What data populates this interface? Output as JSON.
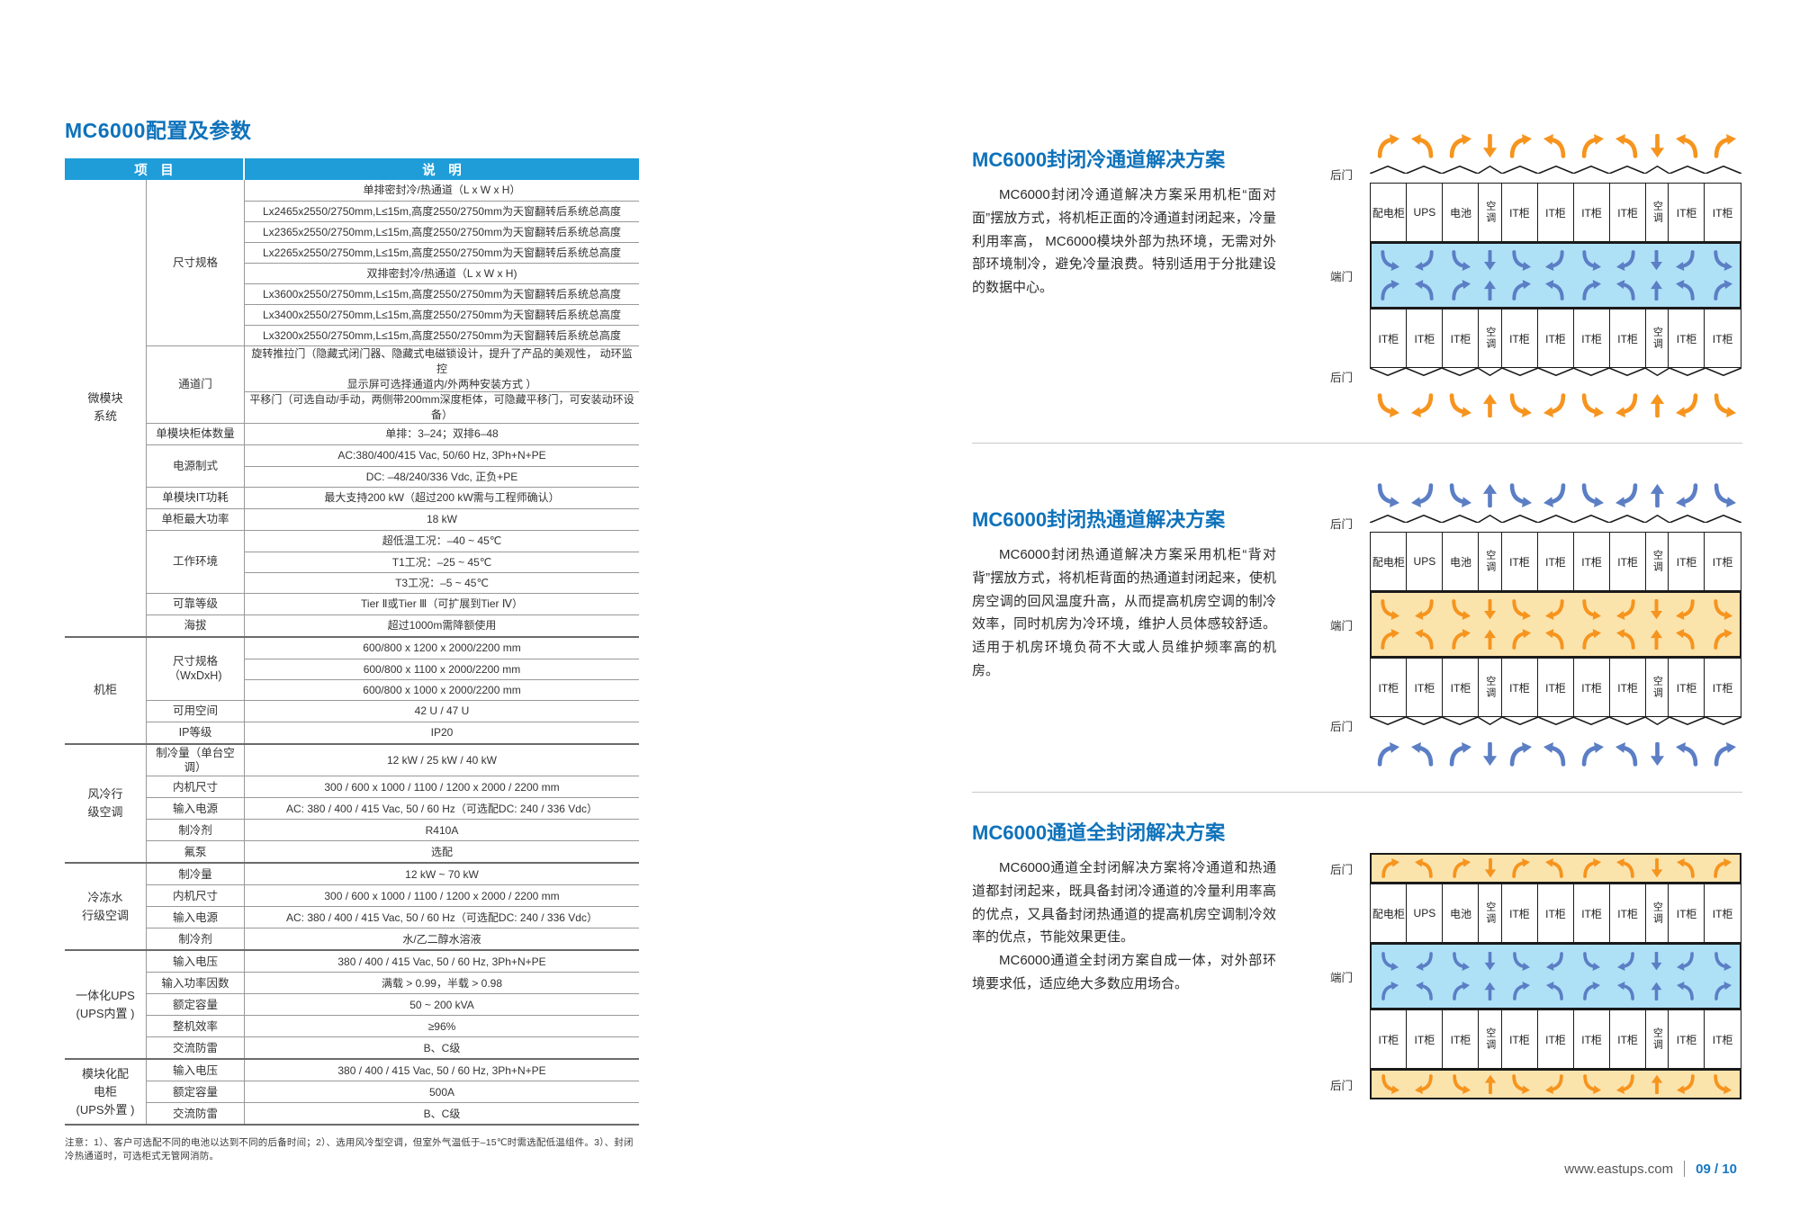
{
  "page": {
    "title": "MC6000配置及参数",
    "note": "注意：1）、客户可选配不同的电池以达到不同的后备时间；2）、选用风冷型空调，但室外气温低于–15℃时需选配低温组件。3）、封闭冷热通道时，可选柜式无管网消防。",
    "footer": {
      "url": "www.eastups.com",
      "page_no": "09 / 10"
    }
  },
  "colors": {
    "accent_blue": "#0e72ba",
    "table_header_blue": "#1e9dd9",
    "cold_aisle": "#aee0f6",
    "hot_aisle": "#fbe3ac",
    "arrow_hot": "#f6941d",
    "arrow_cold": "#5b7ec5"
  },
  "spec_table": {
    "header": {
      "col_item": "项　目",
      "col_desc": "说　明"
    },
    "groups": [
      {
        "name": "微模块\n系统",
        "items": [
          {
            "label": "尺寸规格",
            "rows": [
              "单排密封冷/热通道（L x W x H）",
              "Lx2465x2550/2750mm,L≤15m,高度2550/2750mm为天窗翻转后系统总高度",
              "Lx2365x2550/2750mm,L≤15m,高度2550/2750mm为天窗翻转后系统总高度",
              "Lx2265x2550/2750mm,L≤15m,高度2550/2750mm为天窗翻转后系统总高度",
              "双排密封冷/热通道（L x W x H)",
              "Lx3600x2550/2750mm,L≤15m,高度2550/2750mm为天窗翻转后系统总高度",
              "Lx3400x2550/2750mm,L≤15m,高度2550/2750mm为天窗翻转后系统总高度",
              "Lx3200x2550/2750mm,L≤15m,高度2550/2750mm为天窗翻转后系统总高度"
            ]
          },
          {
            "label": "通道门",
            "rows": [
              "旋转推拉门（隐藏式闭门器、隐藏式电磁锁设计，提升了产品的美观性， 动环监控\n显示屏可选择通道内/外两种安装方式 ）",
              "平移门（可选自动/手动，两侧带200mm深度柜体，可隐藏平移门，可安装动环设备）"
            ]
          },
          {
            "label": "单模块柜体数量",
            "rows": [
              "单排：3–24；双排6–48"
            ]
          },
          {
            "label": "电源制式",
            "rows": [
              "AC:380/400/415 Vac, 50/60 Hz, 3Ph+N+PE",
              "DC: –48/240/336 Vdc, 正负+PE"
            ]
          },
          {
            "label": "单模块IT功耗",
            "rows": [
              "最大支持200 kW（超过200 kW需与工程师确认）"
            ]
          },
          {
            "label": "单柜最大功率",
            "rows": [
              "18 kW"
            ]
          },
          {
            "label": "工作环境",
            "rows": [
              "超低温工况：–40 ~ 45℃",
              "T1工况：–25 ~ 45℃",
              "T3工况：–5 ~ 45℃"
            ]
          },
          {
            "label": "可靠等级",
            "rows": [
              "Tier Ⅱ或Tier Ⅲ（可扩展到Tier Ⅳ）"
            ]
          },
          {
            "label": "海拔",
            "rows": [
              "超过1000m需降额使用"
            ]
          }
        ]
      },
      {
        "name": "机柜",
        "items": [
          {
            "label": "尺寸规格\n（WxDxH)",
            "rows": [
              "600/800 x 1200 x 2000/2200 mm",
              "600/800 x 1100 x 2000/2200 mm",
              "600/800 x 1000 x 2000/2200 mm"
            ]
          },
          {
            "label": "可用空间",
            "rows": [
              "42 U / 47 U"
            ]
          },
          {
            "label": "IP等级",
            "rows": [
              "IP20"
            ]
          }
        ]
      },
      {
        "name": "风冷行\n级空调",
        "items": [
          {
            "label": "制冷量（单台空调）",
            "rows": [
              "12 kW / 25 kW / 40 kW"
            ]
          },
          {
            "label": "内机尺寸",
            "rows": [
              "300 / 600 x 1000 / 1100 / 1200 x 2000 / 2200 mm"
            ]
          },
          {
            "label": "输入电源",
            "rows": [
              "AC: 380 / 400 / 415 Vac, 50 / 60 Hz（可选配DC: 240 / 336 Vdc）"
            ]
          },
          {
            "label": "制冷剂",
            "rows": [
              "R410A"
            ]
          },
          {
            "label": "氟泵",
            "rows": [
              "选配"
            ]
          }
        ]
      },
      {
        "name": "冷冻水\n行级空调",
        "items": [
          {
            "label": "制冷量",
            "rows": [
              "12 kW ~ 70 kW"
            ]
          },
          {
            "label": "内机尺寸",
            "rows": [
              "300 / 600 x 1000 / 1100 / 1200 x 2000 / 2200 mm"
            ]
          },
          {
            "label": "输入电源",
            "rows": [
              "AC: 380 / 400 / 415 Vac, 50 / 60 Hz（可选配DC: 240 / 336 Vdc）"
            ]
          },
          {
            "label": "制冷剂",
            "rows": [
              "水/乙二醇水溶液"
            ]
          }
        ]
      },
      {
        "name": "一体化UPS\n(UPS内置 )",
        "items": [
          {
            "label": "输入电压",
            "rows": [
              "380 / 400 / 415 Vac, 50 / 60 Hz, 3Ph+N+PE"
            ]
          },
          {
            "label": "输入功率因数",
            "rows": [
              "满载 > 0.99，半载 > 0.98"
            ]
          },
          {
            "label": "额定容量",
            "rows": [
              "50 ~ 200 kVA"
            ]
          },
          {
            "label": "整机效率",
            "rows": [
              "≥96%"
            ]
          },
          {
            "label": "交流防雷",
            "rows": [
              "B、C级"
            ]
          }
        ]
      },
      {
        "name": "模块化配\n电柜\n(UPS外置 )",
        "items": [
          {
            "label": "输入电压",
            "rows": [
              "380 / 400 / 415 Vac, 50 / 60 Hz, 3Ph+N+PE"
            ]
          },
          {
            "label": "额定容量",
            "rows": [
              "500A"
            ]
          },
          {
            "label": "交流防雷",
            "rows": [
              "B、C级"
            ]
          }
        ]
      }
    ]
  },
  "sections": [
    {
      "title": "MC6000封闭冷通道解决方案",
      "paras": [
        "MC6000封闭冷通道解决方案采用机柜“面对面”摆放方式，将机柜正面的冷通道封闭起来，冷量利用率高， MC6000模块外部为热环境，无需对外部环境制冷，避免冷量浪费。特别适用于分批建设的数据中心。"
      ]
    },
    {
      "title": "MC6000封闭热通道解决方案",
      "paras": [
        "MC6000封闭热通道解决方案采用机柜“背对背”摆放方式，将机柜背面的热通道封闭起来，使机房空调的回风温度升高，从而提高机房空调的制冷效率，同时机房为冷环境，维护人员体感较舒适。 适用于机房环境负荷不大或人员维护频率高的机房。"
      ]
    },
    {
      "title": "MC6000通道全封闭解决方案",
      "paras": [
        "MC6000通道全封闭解决方案将冷通道和热通道都封闭起来，既具备封闭冷通道的冷量利用率高的优点，又具备封闭热通道的提高机房空调制冷效率的优点，节能效果更佳。",
        "MC6000通道全封闭方案自成一体，对外部环境要求低，适应绝大多数应用场合。"
      ]
    }
  ],
  "diagrams": [
    {
      "style": "open",
      "aisle": "cold",
      "labels": [
        "后门",
        "端门",
        "后门"
      ],
      "row_top": [
        "配电柜",
        "UPS",
        "电池",
        "空调",
        "IT柜",
        "IT柜",
        "IT柜",
        "IT柜",
        "空调",
        "IT柜",
        "IT柜"
      ],
      "row_bottom": [
        "IT柜",
        "IT柜",
        "IT柜",
        "空调",
        "IT柜",
        "IT柜",
        "IT柜",
        "IT柜",
        "空调",
        "IT柜",
        "IT柜"
      ]
    },
    {
      "style": "open",
      "aisle": "hot",
      "labels": [
        "后门",
        "端门",
        "后门"
      ],
      "row_top": [
        "配电柜",
        "UPS",
        "电池",
        "空调",
        "IT柜",
        "IT柜",
        "IT柜",
        "IT柜",
        "空调",
        "IT柜",
        "IT柜"
      ],
      "row_bottom": [
        "IT柜",
        "IT柜",
        "IT柜",
        "空调",
        "IT柜",
        "IT柜",
        "IT柜",
        "IT柜",
        "空调",
        "IT柜",
        "IT柜"
      ]
    },
    {
      "style": "enclosed",
      "aisle": "cold",
      "labels": [
        "后门",
        "端门",
        "后门"
      ],
      "row_top": [
        "配电柜",
        "UPS",
        "电池",
        "空调",
        "IT柜",
        "IT柜",
        "IT柜",
        "IT柜",
        "空调",
        "IT柜",
        "IT柜"
      ],
      "row_bottom": [
        "IT柜",
        "IT柜",
        "IT柜",
        "空调",
        "IT柜",
        "IT柜",
        "IT柜",
        "IT柜",
        "空调",
        "IT柜",
        "IT柜"
      ]
    }
  ]
}
